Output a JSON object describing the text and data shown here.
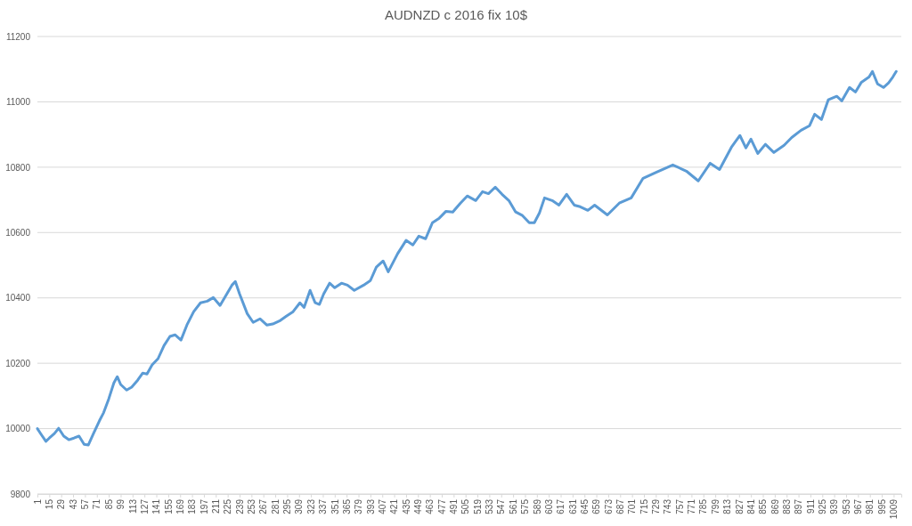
{
  "chart_data": {
    "type": "line",
    "title": "AUDNZD c 2016 fix 10$",
    "series": [
      {
        "color": "#5b9bd5",
        "x": [
          1,
          5,
          11,
          15,
          21,
          26,
          32,
          38,
          44,
          50,
          56,
          61,
          67,
          74,
          79,
          85,
          91,
          95,
          99,
          106,
          112,
          119,
          125,
          130,
          136,
          143,
          150,
          157,
          163,
          170,
          177,
          185,
          193,
          201,
          208,
          216,
          224,
          230,
          234,
          239,
          248,
          255,
          263,
          271,
          278,
          287,
          294,
          302,
          310,
          315,
          322,
          328,
          333,
          338,
          345,
          351,
          359,
          366,
          374,
          385,
          393,
          400,
          408,
          414,
          425,
          435,
          443,
          450,
          458,
          466,
          474,
          482,
          490,
          499,
          507,
          517,
          525,
          532,
          540,
          548,
          556,
          564,
          572,
          580,
          586,
          592,
          598,
          607,
          615,
          624,
          633,
          640,
          649,
          657,
          672,
          686,
          700,
          714,
          730,
          749,
          765,
          779,
          793,
          804,
          818,
          828,
          835,
          841,
          849,
          858,
          868,
          880,
          889,
          900,
          910,
          916,
          924,
          932,
          942,
          948,
          957,
          964,
          971,
          980,
          984,
          990,
          997,
          1003,
          1008,
          1012
        ],
        "values": [
          10000,
          9984,
          9961,
          9971,
          9985,
          10001,
          9977,
          9966,
          9971,
          9977,
          9952,
          9950,
          9985,
          10024,
          10049,
          10091,
          10140,
          10159,
          10135,
          10118,
          10127,
          10148,
          10170,
          10167,
          10195,
          10214,
          10254,
          10282,
          10287,
          10271,
          10317,
          10358,
          10385,
          10390,
          10401,
          10377,
          10412,
          10439,
          10450,
          10412,
          10352,
          10325,
          10336,
          10317,
          10320,
          10331,
          10344,
          10358,
          10385,
          10371,
          10423,
          10385,
          10380,
          10412,
          10445,
          10431,
          10445,
          10439,
          10423,
          10439,
          10453,
          10494,
          10513,
          10480,
          10535,
          10576,
          10562,
          10589,
          10581,
          10630,
          10644,
          10665,
          10663,
          10690,
          10712,
          10698,
          10725,
          10719,
          10739,
          10717,
          10698,
          10663,
          10652,
          10630,
          10630,
          10660,
          10706,
          10698,
          10684,
          10717,
          10684,
          10679,
          10668,
          10684,
          10654,
          10690,
          10706,
          10766,
          10785,
          10807,
          10788,
          10758,
          10812,
          10793,
          10861,
          10897,
          10859,
          10886,
          10842,
          10870,
          10845,
          10867,
          10891,
          10913,
          10927,
          10962,
          10946,
          11006,
          11017,
          11003,
          11044,
          11030,
          11060,
          11076,
          11093,
          11055,
          11044,
          11058,
          11076,
          11093
        ]
      }
    ],
    "xlim": [
      1,
      1018
    ],
    "xticks": [
      1,
      15,
      29,
      43,
      57,
      71,
      85,
      99,
      113,
      127,
      141,
      155,
      169,
      183,
      197,
      211,
      225,
      239,
      253,
      267,
      281,
      295,
      309,
      323,
      337,
      351,
      365,
      379,
      393,
      407,
      421,
      435,
      449,
      463,
      477,
      491,
      505,
      519,
      533,
      547,
      561,
      575,
      589,
      603,
      617,
      631,
      645,
      659,
      673,
      687,
      701,
      715,
      729,
      743,
      757,
      771,
      785,
      799,
      813,
      827,
      841,
      855,
      869,
      883,
      897,
      911,
      925,
      939,
      953,
      967,
      981,
      995,
      1009
    ],
    "ylim": [
      9800,
      11200
    ],
    "yticks": [
      9800,
      10000,
      10200,
      10400,
      10600,
      10800,
      11000,
      11200
    ],
    "grid": "y"
  }
}
